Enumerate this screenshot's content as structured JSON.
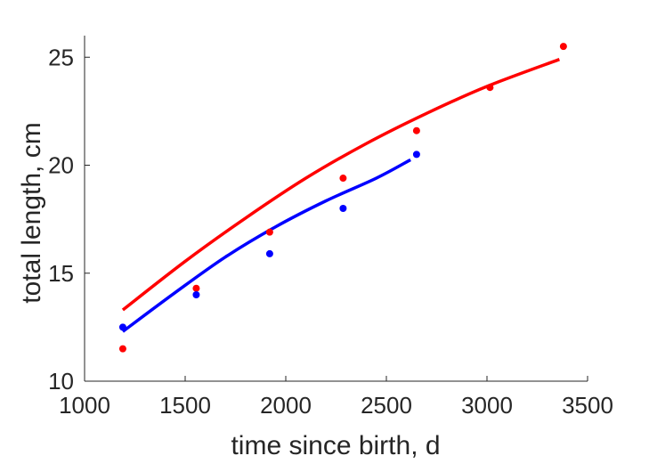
{
  "chart_data": {
    "type": "scatter",
    "xlabel": "time since birth, d",
    "ylabel": "total length, cm",
    "xlim": [
      1000,
      3500
    ],
    "ylim": [
      10,
      26
    ],
    "xticks": [
      1000,
      1500,
      2000,
      2500,
      3000,
      3500
    ],
    "yticks": [
      10,
      15,
      20,
      25
    ],
    "grid": false,
    "series": [
      {
        "color": "#ff0000",
        "points": [
          {
            "x": 1190,
            "y": 11.5
          },
          {
            "x": 1555,
            "y": 14.3
          },
          {
            "x": 1920,
            "y": 16.9
          },
          {
            "x": 2285,
            "y": 19.4
          },
          {
            "x": 2650,
            "y": 21.6
          },
          {
            "x": 3015,
            "y": 23.6
          },
          {
            "x": 3380,
            "y": 25.5
          }
        ],
        "curve": [
          {
            "x": 1190,
            "y": 13.3
          },
          {
            "x": 1500,
            "y": 15.55
          },
          {
            "x": 1800,
            "y": 17.55
          },
          {
            "x": 2100,
            "y": 19.4
          },
          {
            "x": 2400,
            "y": 21.0
          },
          {
            "x": 2700,
            "y": 22.4
          },
          {
            "x": 3000,
            "y": 23.65
          },
          {
            "x": 3360,
            "y": 24.9
          }
        ]
      },
      {
        "color": "#0000ff",
        "points": [
          {
            "x": 1190,
            "y": 12.5
          },
          {
            "x": 1555,
            "y": 14.0
          },
          {
            "x": 1920,
            "y": 15.9
          },
          {
            "x": 2285,
            "y": 18.0
          },
          {
            "x": 2650,
            "y": 20.5
          }
        ],
        "curve": [
          {
            "x": 1190,
            "y": 12.3
          },
          {
            "x": 1450,
            "y": 14.1
          },
          {
            "x": 1700,
            "y": 15.75
          },
          {
            "x": 1950,
            "y": 17.15
          },
          {
            "x": 2200,
            "y": 18.35
          },
          {
            "x": 2450,
            "y": 19.4
          },
          {
            "x": 2620,
            "y": 20.25
          }
        ]
      }
    ]
  }
}
